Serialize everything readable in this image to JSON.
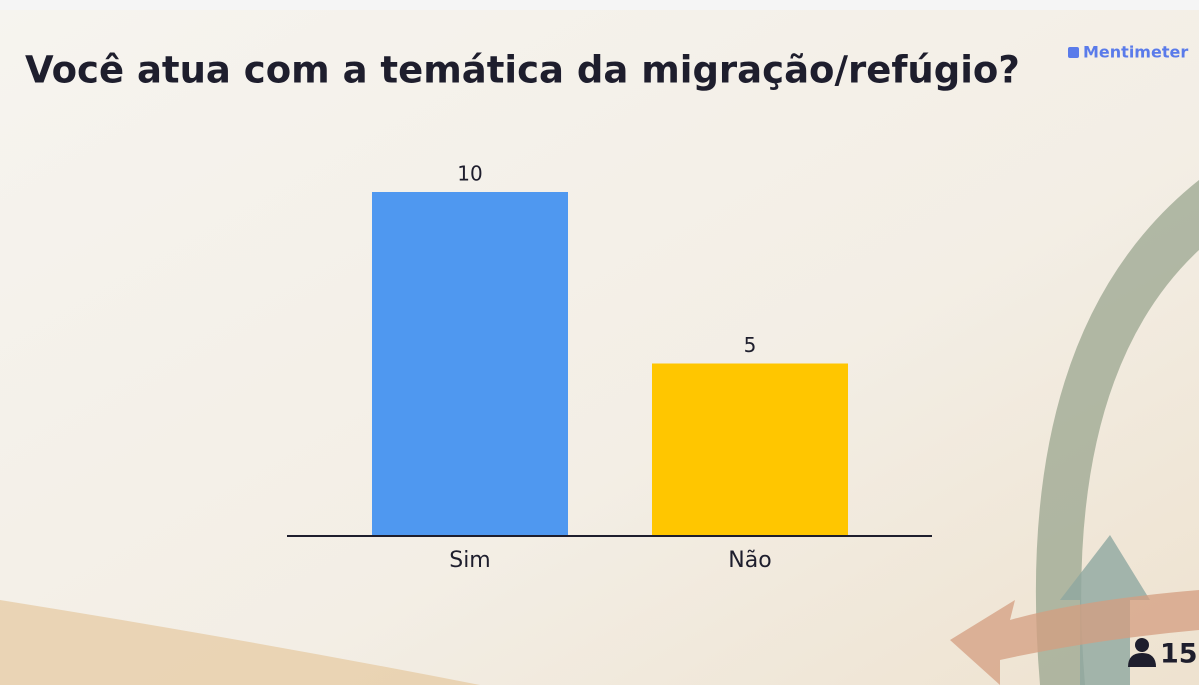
{
  "chart_data": {
    "type": "bar",
    "title": "Você atua com a temática da migração/refúgio?",
    "categories": [
      "Sim",
      "Não"
    ],
    "values": [
      10,
      5
    ],
    "colors": [
      "#4f98f0",
      "#ffc600"
    ]
  },
  "brand": "Mentimeter",
  "participants": 15
}
